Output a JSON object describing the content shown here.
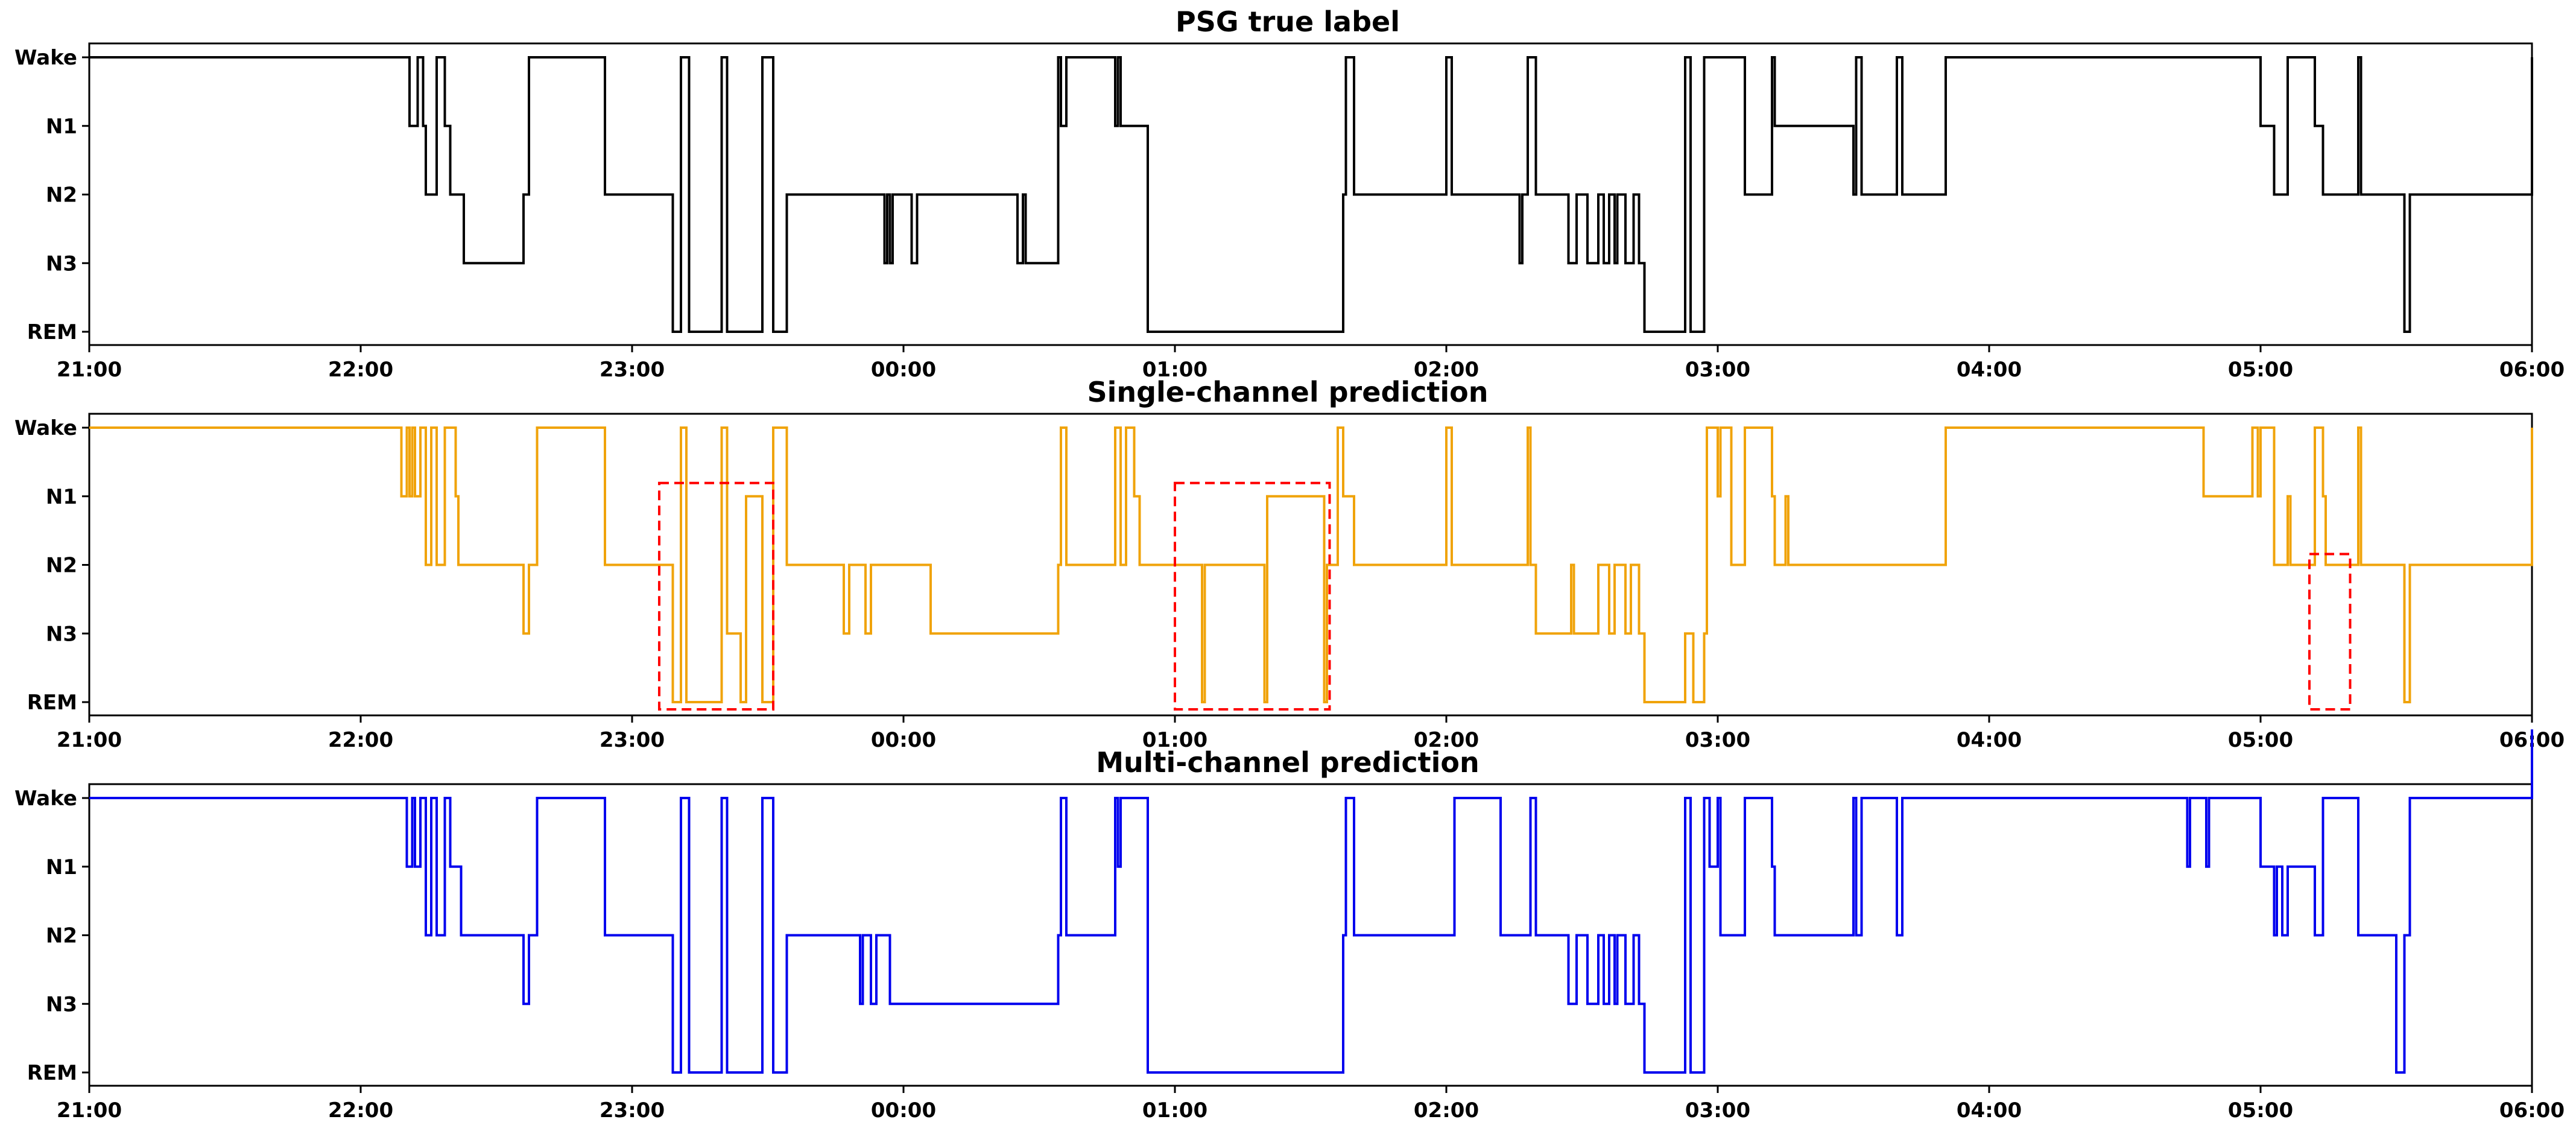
{
  "chart_data": [
    {
      "type": "line",
      "subtype": "step",
      "title": "PSG true label",
      "color": "#000000",
      "y_categories": [
        "Wake",
        "N1",
        "N2",
        "N3",
        "REM"
      ],
      "x_range_hours": [
        21,
        30
      ],
      "x_ticks": [
        "21:00",
        "22:00",
        "23:00",
        "00:00",
        "01:00",
        "02:00",
        "03:00",
        "04:00",
        "05:00",
        "06:00"
      ],
      "x_hours": [
        21.0,
        22.18,
        22.21,
        22.23,
        22.24,
        22.28,
        22.31,
        22.33,
        22.37,
        22.38,
        22.6,
        22.62,
        22.65,
        22.9,
        23.15,
        23.18,
        23.21,
        23.33,
        23.35,
        23.48,
        23.52,
        23.57,
        23.93,
        23.94,
        23.95,
        23.96,
        24.03,
        24.05,
        24.42,
        24.44,
        24.45,
        24.57,
        24.58,
        24.6,
        24.78,
        24.79,
        24.8,
        24.9,
        25.62,
        25.63,
        25.66,
        26.0,
        26.02,
        26.2,
        26.27,
        26.28,
        26.3,
        26.33,
        26.45,
        26.48,
        26.52,
        26.56,
        26.58,
        26.6,
        26.62,
        26.63,
        26.66,
        26.69,
        26.71,
        26.73,
        26.88,
        26.9,
        26.95,
        27.1,
        27.2,
        27.21,
        27.5,
        27.51,
        27.53,
        27.66,
        27.68,
        27.84,
        28.84,
        29.0,
        29.05,
        29.1,
        29.2,
        29.23,
        29.36,
        29.37,
        29.5,
        29.53,
        29.55,
        30.0
      ],
      "stages": [
        "Wake",
        "N1",
        "Wake",
        "N1",
        "N2",
        "Wake",
        "N1",
        "N2",
        "N2",
        "N3",
        "N2",
        "Wake",
        "Wake",
        "N2",
        "REM",
        "Wake",
        "REM",
        "Wake",
        "REM",
        "Wake",
        "REM",
        "N2",
        "N3",
        "N2",
        "N3",
        "N2",
        "N3",
        "N2",
        "N3",
        "N2",
        "N3",
        "Wake",
        "N1",
        "Wake",
        "N1",
        "Wake",
        "N1",
        "REM",
        "N2",
        "Wake",
        "N2",
        "Wake",
        "N2",
        "N2",
        "N3",
        "N2",
        "Wake",
        "N2",
        "N3",
        "N2",
        "N3",
        "N2",
        "N3",
        "N2",
        "N3",
        "N2",
        "N3",
        "N2",
        "N3",
        "REM",
        "Wake",
        "REM",
        "Wake",
        "N2",
        "Wake",
        "N1",
        "N2",
        "Wake",
        "N2",
        "Wake",
        "N2",
        "Wake",
        "Wake",
        "N1",
        "N2",
        "Wake",
        "N1",
        "N2",
        "Wake",
        "N2",
        "N2",
        "REM",
        "N2",
        "Wake"
      ]
    },
    {
      "type": "line",
      "subtype": "step",
      "title": "Single-channel prediction",
      "color": "#f0a30a",
      "highlight_color": "#ff0000",
      "highlights": [
        {
          "x0": 23.1,
          "x1": 23.52
        },
        {
          "x0": 25.0,
          "x1": 25.57
        },
        {
          "x0": 29.18,
          "x1": 29.33
        }
      ],
      "y_categories": [
        "Wake",
        "N1",
        "N2",
        "N3",
        "REM"
      ],
      "x_range_hours": [
        21,
        30
      ],
      "x_ticks": [
        "21:00",
        "22:00",
        "23:00",
        "00:00",
        "01:00",
        "02:00",
        "03:00",
        "04:00",
        "05:00",
        "06:00"
      ],
      "x_hours": [
        21.0,
        22.15,
        22.17,
        22.18,
        22.19,
        22.2,
        22.22,
        22.24,
        22.26,
        22.28,
        22.31,
        22.35,
        22.36,
        22.37,
        22.6,
        22.62,
        22.65,
        22.9,
        23.15,
        23.18,
        23.2,
        23.33,
        23.35,
        23.4,
        23.42,
        23.48,
        23.52,
        23.57,
        23.78,
        23.8,
        23.86,
        23.88,
        24.1,
        24.57,
        24.58,
        24.6,
        24.78,
        24.8,
        24.82,
        24.85,
        24.87,
        24.9,
        25.1,
        25.11,
        25.33,
        25.34,
        25.55,
        25.56,
        25.6,
        25.62,
        25.66,
        26.0,
        26.02,
        26.25,
        26.3,
        26.31,
        26.33,
        26.46,
        26.47,
        26.56,
        26.6,
        26.62,
        26.66,
        26.68,
        26.71,
        26.73,
        26.88,
        26.91,
        26.95,
        26.96,
        27.0,
        27.01,
        27.05,
        27.1,
        27.2,
        27.21,
        27.25,
        27.26,
        27.84,
        28.78,
        28.79,
        28.97,
        28.99,
        29.0,
        29.05,
        29.1,
        29.11,
        29.2,
        29.23,
        29.24,
        29.36,
        29.37,
        29.5,
        29.53,
        29.55,
        30.0
      ],
      "stages": [
        "Wake",
        "N1",
        "Wake",
        "N1",
        "Wake",
        "N1",
        "Wake",
        "N2",
        "Wake",
        "N2",
        "Wake",
        "N1",
        "N2",
        "N2",
        "N3",
        "N2",
        "Wake",
        "N2",
        "REM",
        "Wake",
        "REM",
        "Wake",
        "N3",
        "REM",
        "N1",
        "REM",
        "Wake",
        "N2",
        "N3",
        "N2",
        "N3",
        "N2",
        "N3",
        "N2",
        "Wake",
        "N2",
        "Wake",
        "N2",
        "Wake",
        "N1",
        "N2",
        "N2",
        "REM",
        "N2",
        "REM",
        "N1",
        "REM",
        "N2",
        "Wake",
        "N1",
        "N2",
        "Wake",
        "N2",
        "N2",
        "Wake",
        "N2",
        "N3",
        "N2",
        "N3",
        "N2",
        "N3",
        "N2",
        "N3",
        "N2",
        "N3",
        "REM",
        "N3",
        "REM",
        "N3",
        "Wake",
        "N1",
        "Wake",
        "N2",
        "Wake",
        "N1",
        "N2",
        "N1",
        "N2",
        "Wake",
        "Wake",
        "N1",
        "Wake",
        "N1",
        "Wake",
        "N2",
        "N1",
        "N2",
        "Wake",
        "N1",
        "N2",
        "Wake",
        "N2",
        "N2",
        "REM",
        "N2",
        "Wake"
      ]
    },
    {
      "type": "line",
      "subtype": "step",
      "title": "Multi-channel prediction",
      "color": "#0000ee",
      "y_categories": [
        "Wake",
        "N1",
        "N2",
        "N3",
        "REM"
      ],
      "x_range_hours": [
        21,
        30
      ],
      "x_ticks": [
        "21:00",
        "22:00",
        "23:00",
        "00:00",
        "01:00",
        "02:00",
        "03:00",
        "04:00",
        "05:00",
        "06:00"
      ],
      "x_hours": [
        21.0,
        22.17,
        22.19,
        22.2,
        22.22,
        22.24,
        22.26,
        22.28,
        22.31,
        22.33,
        22.37,
        22.38,
        22.6,
        22.62,
        22.65,
        22.9,
        23.15,
        23.18,
        23.21,
        23.33,
        23.35,
        23.48,
        23.52,
        23.57,
        23.84,
        23.85,
        23.88,
        23.9,
        23.95,
        23.96,
        24.57,
        24.58,
        24.6,
        24.78,
        24.79,
        24.8,
        24.9,
        25.62,
        25.63,
        25.66,
        26.02,
        26.03,
        26.2,
        26.3,
        26.31,
        26.33,
        26.45,
        26.48,
        26.52,
        26.56,
        26.58,
        26.6,
        26.62,
        26.63,
        26.66,
        26.69,
        26.71,
        26.73,
        26.88,
        26.9,
        26.95,
        26.97,
        27.0,
        27.01,
        27.1,
        27.2,
        27.21,
        27.5,
        27.51,
        27.53,
        27.66,
        27.68,
        27.84,
        28.73,
        28.74,
        28.8,
        28.81,
        29.0,
        29.05,
        29.06,
        29.08,
        29.1,
        29.2,
        29.23,
        29.36,
        29.37,
        29.5,
        29.53,
        29.55,
        30.0
      ],
      "stages": [
        "Wake",
        "N1",
        "Wake",
        "N1",
        "Wake",
        "N2",
        "Wake",
        "N2",
        "Wake",
        "N1",
        "N2",
        "N2",
        "N3",
        "N2",
        "Wake",
        "N2",
        "REM",
        "Wake",
        "REM",
        "Wake",
        "REM",
        "Wake",
        "REM",
        "N2",
        "N3",
        "N2",
        "N3",
        "N2",
        "N3",
        "N3",
        "N2",
        "Wake",
        "N2",
        "Wake",
        "N1",
        "Wake",
        "REM",
        "N2",
        "Wake",
        "N2",
        "N2",
        "Wake",
        "N2",
        "N2",
        "Wake",
        "N2",
        "N3",
        "N2",
        "N3",
        "N2",
        "N3",
        "N2",
        "N3",
        "N2",
        "N3",
        "N2",
        "N3",
        "REM",
        "Wake",
        "REM",
        "Wake",
        "N1",
        "Wake",
        "N2",
        "Wake",
        "N1",
        "N2",
        "Wake",
        "N2",
        "Wake",
        "N2",
        "Wake",
        "Wake",
        "N1",
        "Wake",
        "N1",
        "Wake",
        "N1",
        "N2",
        "N1",
        "N2",
        "N1",
        "N2",
        "Wake",
        "N2",
        "N2",
        "REM",
        "N2",
        "Wake"
      ]
    }
  ]
}
